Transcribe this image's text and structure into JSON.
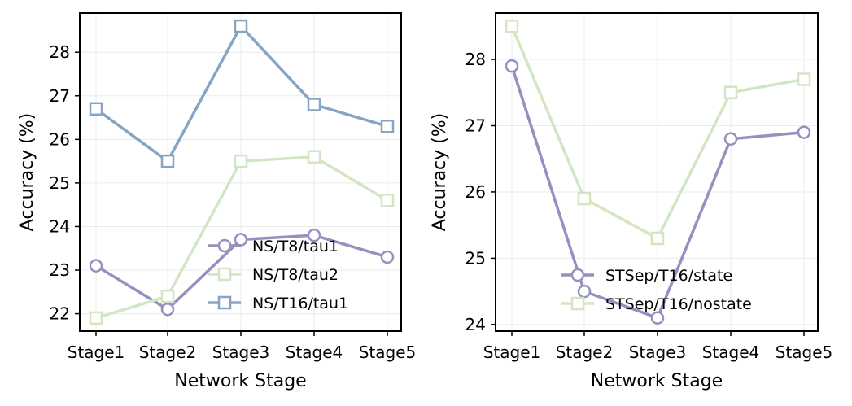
{
  "colors": {
    "ns_t8_tau1": "#9590bf",
    "ns_t8_tau2": "#d3e6c3",
    "ns_t16_tau1": "#88a4c5",
    "stsep_state": "#9590bf",
    "stsep_nostate": "#d3e6c3"
  },
  "chart_data": [
    {
      "type": "line",
      "title": "",
      "xlabel": "Network Stage",
      "ylabel": "Accuracy (%)",
      "categories": [
        "Stage1",
        "Stage2",
        "Stage3",
        "Stage4",
        "Stage5"
      ],
      "ylim": [
        21.6,
        28.9
      ],
      "yticks": [
        22,
        23,
        24,
        25,
        26,
        27,
        28
      ],
      "ytick_labels": [
        "22",
        "23",
        "24",
        "25",
        "26",
        "27",
        "28"
      ],
      "grid": true,
      "legend_position": "bottom-right",
      "series": [
        {
          "name": "NS/T8/tau1",
          "marker": "circle",
          "color_key": "ns_t8_tau1",
          "values": [
            23.1,
            22.1,
            23.7,
            23.8,
            23.3
          ]
        },
        {
          "name": "NS/T8/tau2",
          "marker": "square",
          "color_key": "ns_t8_tau2",
          "values": [
            21.9,
            22.4,
            25.5,
            25.6,
            24.6
          ]
        },
        {
          "name": "NS/T16/tau1",
          "marker": "square",
          "color_key": "ns_t16_tau1",
          "values": [
            26.7,
            25.5,
            28.6,
            26.8,
            26.3
          ]
        }
      ]
    },
    {
      "type": "line",
      "title": "",
      "xlabel": "Network Stage",
      "ylabel": "Accuracy (%)",
      "categories": [
        "Stage1",
        "Stage2",
        "Stage3",
        "Stage4",
        "Stage5"
      ],
      "ylim": [
        23.9,
        28.7
      ],
      "yticks": [
        24,
        25,
        26,
        27,
        28
      ],
      "ytick_labels": [
        "24",
        "25",
        "26",
        "27",
        "28"
      ],
      "grid": true,
      "legend_position": "bottom-right",
      "series": [
        {
          "name": "STSep/T16/state",
          "marker": "circle",
          "color_key": "stsep_state",
          "values": [
            27.9,
            24.5,
            24.1,
            26.8,
            26.9
          ]
        },
        {
          "name": "STSep/T16/nostate",
          "marker": "square",
          "color_key": "stsep_nostate",
          "values": [
            28.5,
            25.9,
            25.3,
            27.5,
            27.7
          ]
        }
      ]
    }
  ]
}
